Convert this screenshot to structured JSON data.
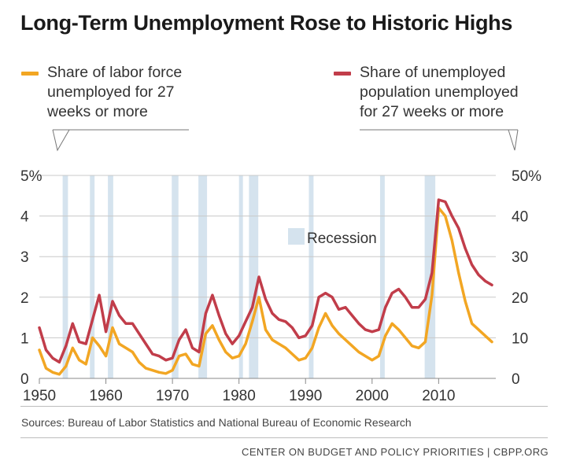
{
  "title": "Long-Term Unemployment Rose to Historic Highs",
  "legend": {
    "left": {
      "label": "Share of labor force unemployed for 27 weeks or more",
      "lines": [
        "Share of labor force",
        "unemployed for 27",
        "weeks or more"
      ],
      "color": "#f2a623"
    },
    "right": {
      "label": "Share of unemployed population unemployed for 27 weeks or more",
      "lines": [
        "Share of unemployed",
        "population unemployed",
        "for 27 weeks or more"
      ],
      "color": "#c13d4a"
    }
  },
  "recession_label": "Recession",
  "source": "Sources: Bureau of Labor Statistics and National Bureau of Economic Research",
  "credit": "CENTER ON BUDGET AND POLICY PRIORITIES | CBPP.ORG",
  "chart_data": {
    "type": "line",
    "title": "Long-Term Unemployment Rose to Historic Highs",
    "x_ticks": [
      1950,
      1960,
      1970,
      1980,
      1990,
      2000,
      2010
    ],
    "xlim": [
      1950,
      2018
    ],
    "y_left": {
      "lim": [
        0,
        5
      ],
      "ticks": [
        "0",
        "1",
        "2",
        "3",
        "4",
        "5%"
      ]
    },
    "y_right": {
      "lim": [
        0,
        50
      ],
      "ticks": [
        "0",
        "10",
        "20",
        "30",
        "40",
        "50%"
      ]
    },
    "grid": "horizontal",
    "recessions": [
      [
        1953.5,
        1954.3
      ],
      [
        1957.6,
        1958.3
      ],
      [
        1960.3,
        1961.1
      ],
      [
        1969.9,
        1970.9
      ],
      [
        1973.9,
        1975.2
      ],
      [
        1980.0,
        1980.5
      ],
      [
        1981.5,
        1982.9
      ],
      [
        1990.5,
        1991.2
      ],
      [
        2001.2,
        2001.9
      ],
      [
        2007.9,
        2009.5
      ]
    ],
    "series": [
      {
        "name": "Share of labor force unemployed for 27 weeks or more",
        "axis": "left",
        "color": "#f2a623",
        "points": [
          [
            1950,
            0.7
          ],
          [
            1951,
            0.25
          ],
          [
            1952,
            0.15
          ],
          [
            1953,
            0.1
          ],
          [
            1954,
            0.3
          ],
          [
            1955,
            0.75
          ],
          [
            1956,
            0.45
          ],
          [
            1957,
            0.35
          ],
          [
            1958,
            1.0
          ],
          [
            1959,
            0.8
          ],
          [
            1960,
            0.55
          ],
          [
            1961,
            1.25
          ],
          [
            1962,
            0.85
          ],
          [
            1963,
            0.75
          ],
          [
            1964,
            0.65
          ],
          [
            1965,
            0.4
          ],
          [
            1966,
            0.25
          ],
          [
            1967,
            0.2
          ],
          [
            1968,
            0.15
          ],
          [
            1969,
            0.12
          ],
          [
            1970,
            0.2
          ],
          [
            1971,
            0.55
          ],
          [
            1972,
            0.6
          ],
          [
            1973,
            0.35
          ],
          [
            1974,
            0.3
          ],
          [
            1975,
            1.1
          ],
          [
            1976,
            1.3
          ],
          [
            1977,
            0.95
          ],
          [
            1978,
            0.65
          ],
          [
            1979,
            0.5
          ],
          [
            1980,
            0.55
          ],
          [
            1981,
            0.85
          ],
          [
            1982,
            1.4
          ],
          [
            1983,
            2.0
          ],
          [
            1984,
            1.2
          ],
          [
            1985,
            0.95
          ],
          [
            1986,
            0.85
          ],
          [
            1987,
            0.75
          ],
          [
            1988,
            0.6
          ],
          [
            1989,
            0.45
          ],
          [
            1990,
            0.5
          ],
          [
            1991,
            0.75
          ],
          [
            1992,
            1.25
          ],
          [
            1993,
            1.6
          ],
          [
            1994,
            1.3
          ],
          [
            1995,
            1.1
          ],
          [
            1996,
            0.95
          ],
          [
            1997,
            0.8
          ],
          [
            1998,
            0.65
          ],
          [
            1999,
            0.55
          ],
          [
            2000,
            0.45
          ],
          [
            2001,
            0.55
          ],
          [
            2002,
            1.05
          ],
          [
            2003,
            1.35
          ],
          [
            2004,
            1.2
          ],
          [
            2005,
            1.0
          ],
          [
            2006,
            0.8
          ],
          [
            2007,
            0.75
          ],
          [
            2008,
            0.9
          ],
          [
            2009,
            2.05
          ],
          [
            2010,
            4.2
          ],
          [
            2011,
            4.0
          ],
          [
            2012,
            3.4
          ],
          [
            2013,
            2.6
          ],
          [
            2014,
            1.9
          ],
          [
            2015,
            1.35
          ],
          [
            2016,
            1.2
          ],
          [
            2017,
            1.05
          ],
          [
            2018,
            0.9
          ]
        ]
      },
      {
        "name": "Share of unemployed population unemployed for 27 weeks or more",
        "axis": "right",
        "color": "#c13d4a",
        "points": [
          [
            1950,
            12.5
          ],
          [
            1951,
            7
          ],
          [
            1952,
            5
          ],
          [
            1953,
            4
          ],
          [
            1954,
            8
          ],
          [
            1955,
            13.5
          ],
          [
            1956,
            9
          ],
          [
            1957,
            8.5
          ],
          [
            1958,
            14.5
          ],
          [
            1959,
            20.5
          ],
          [
            1960,
            11.5
          ],
          [
            1961,
            19
          ],
          [
            1962,
            15.5
          ],
          [
            1963,
            13.5
          ],
          [
            1964,
            13.5
          ],
          [
            1965,
            11
          ],
          [
            1966,
            8.5
          ],
          [
            1967,
            6
          ],
          [
            1968,
            5.5
          ],
          [
            1969,
            4.5
          ],
          [
            1970,
            5
          ],
          [
            1971,
            9.5
          ],
          [
            1972,
            12
          ],
          [
            1973,
            7.5
          ],
          [
            1974,
            6.5
          ],
          [
            1975,
            16
          ],
          [
            1976,
            20.5
          ],
          [
            1977,
            15.5
          ],
          [
            1978,
            11
          ],
          [
            1979,
            8.5
          ],
          [
            1980,
            10.5
          ],
          [
            1981,
            14
          ],
          [
            1982,
            17.5
          ],
          [
            1983,
            25
          ],
          [
            1984,
            19.5
          ],
          [
            1985,
            16
          ],
          [
            1986,
            14.5
          ],
          [
            1987,
            14
          ],
          [
            1988,
            12.5
          ],
          [
            1989,
            10
          ],
          [
            1990,
            10.5
          ],
          [
            1991,
            13
          ],
          [
            1992,
            20
          ],
          [
            1993,
            21
          ],
          [
            1994,
            20
          ],
          [
            1995,
            17
          ],
          [
            1996,
            17.5
          ],
          [
            1997,
            15.5
          ],
          [
            1998,
            13.5
          ],
          [
            1999,
            12
          ],
          [
            2000,
            11.5
          ],
          [
            2001,
            12
          ],
          [
            2002,
            17.5
          ],
          [
            2003,
            21
          ],
          [
            2004,
            22
          ],
          [
            2005,
            20
          ],
          [
            2006,
            17.5
          ],
          [
            2007,
            17.5
          ],
          [
            2008,
            19.5
          ],
          [
            2009,
            26
          ],
          [
            2010,
            44
          ],
          [
            2011,
            43.5
          ],
          [
            2012,
            40
          ],
          [
            2013,
            37
          ],
          [
            2014,
            32
          ],
          [
            2015,
            28
          ],
          [
            2016,
            25.5
          ],
          [
            2017,
            24
          ],
          [
            2018,
            23
          ]
        ]
      }
    ]
  }
}
